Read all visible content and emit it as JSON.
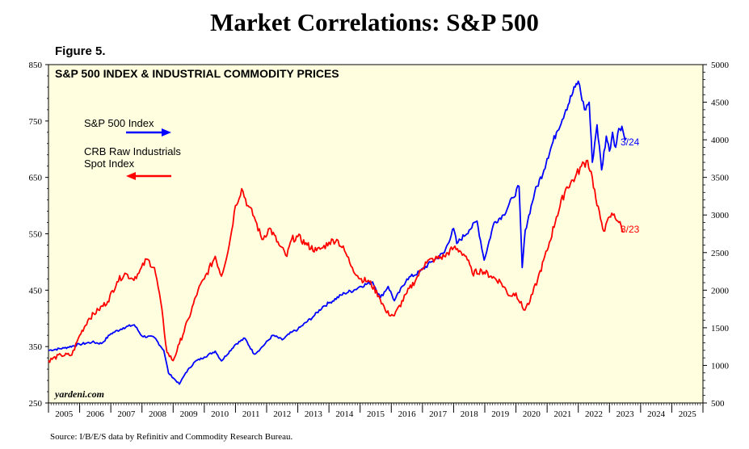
{
  "page": {
    "title": "Market Correlations: S&P 500",
    "figure_label": "Figure 5.",
    "source": "Source: I/B/E/S data by Refinitiv and Commodity Research Bureau.",
    "watermark": "yardeni.com"
  },
  "chart_data": {
    "type": "line",
    "title": "S&P 500 INDEX & INDUSTRIAL COMMODITY PRICES",
    "background": "#ffffe0",
    "x_range": [
      2005.0,
      2026.0
    ],
    "x_ticks": [
      "2005",
      "2006",
      "2007",
      "2008",
      "2009",
      "2010",
      "2011",
      "2012",
      "2013",
      "2014",
      "2015",
      "2016",
      "2017",
      "2018",
      "2019",
      "2020",
      "2021",
      "2022",
      "2023",
      "2024",
      "2025"
    ],
    "left_axis": {
      "range": [
        250,
        850
      ],
      "ticks": [
        "250",
        "350",
        "450",
        "550",
        "650",
        "750",
        "850"
      ],
      "series": "CRB Raw Industrials Spot Index"
    },
    "right_axis": {
      "range": [
        500,
        5000
      ],
      "ticks": [
        "500",
        "1000",
        "1500",
        "2000",
        "2500",
        "3000",
        "3500",
        "4000",
        "4500",
        "5000"
      ],
      "series": "S&P 500 Index"
    },
    "grid": false,
    "legend": {
      "placement": "top-left"
    },
    "series": [
      {
        "name": "S&P 500 Index",
        "axis": "right",
        "color": "#0000ff",
        "end_label": "3/24",
        "points": [
          [
            2005.0,
            1200
          ],
          [
            2005.5,
            1230
          ],
          [
            2006.0,
            1280
          ],
          [
            2006.4,
            1310
          ],
          [
            2006.7,
            1290
          ],
          [
            2007.0,
            1420
          ],
          [
            2007.4,
            1500
          ],
          [
            2007.75,
            1540
          ],
          [
            2008.0,
            1390
          ],
          [
            2008.4,
            1370
          ],
          [
            2008.7,
            1200
          ],
          [
            2008.85,
            900
          ],
          [
            2009.2,
            750
          ],
          [
            2009.4,
            900
          ],
          [
            2009.7,
            1050
          ],
          [
            2010.0,
            1110
          ],
          [
            2010.35,
            1190
          ],
          [
            2010.55,
            1060
          ],
          [
            2011.0,
            1280
          ],
          [
            2011.3,
            1360
          ],
          [
            2011.6,
            1150
          ],
          [
            2011.8,
            1220
          ],
          [
            2012.2,
            1400
          ],
          [
            2012.5,
            1340
          ],
          [
            2012.8,
            1440
          ],
          [
            2013.0,
            1480
          ],
          [
            2013.5,
            1650
          ],
          [
            2013.8,
            1780
          ],
          [
            2014.0,
            1830
          ],
          [
            2014.5,
            1960
          ],
          [
            2014.8,
            2000
          ],
          [
            2015.0,
            2050
          ],
          [
            2015.4,
            2110
          ],
          [
            2015.65,
            1900
          ],
          [
            2015.9,
            2050
          ],
          [
            2016.1,
            1860
          ],
          [
            2016.5,
            2150
          ],
          [
            2016.9,
            2240
          ],
          [
            2017.3,
            2380
          ],
          [
            2017.7,
            2500
          ],
          [
            2018.0,
            2820
          ],
          [
            2018.1,
            2620
          ],
          [
            2018.5,
            2800
          ],
          [
            2018.75,
            2920
          ],
          [
            2018.98,
            2400
          ],
          [
            2019.3,
            2900
          ],
          [
            2019.6,
            3000
          ],
          [
            2019.9,
            3230
          ],
          [
            2020.1,
            3380
          ],
          [
            2020.2,
            2300
          ],
          [
            2020.3,
            2800
          ],
          [
            2020.6,
            3300
          ],
          [
            2020.9,
            3600
          ],
          [
            2021.0,
            3750
          ],
          [
            2021.3,
            4100
          ],
          [
            2021.6,
            4400
          ],
          [
            2021.9,
            4700
          ],
          [
            2022.0,
            4780
          ],
          [
            2022.2,
            4400
          ],
          [
            2022.35,
            4500
          ],
          [
            2022.45,
            3700
          ],
          [
            2022.6,
            4200
          ],
          [
            2022.75,
            3600
          ],
          [
            2022.9,
            4050
          ],
          [
            2023.0,
            3850
          ],
          [
            2023.1,
            4100
          ],
          [
            2023.2,
            3900
          ],
          [
            2023.3,
            4150
          ],
          [
            2023.4,
            4180
          ],
          [
            2023.5,
            4000
          ],
          [
            2023.55,
            4020
          ]
        ]
      },
      {
        "name": "CRB Raw Industrials Spot Index",
        "axis": "left",
        "color": "#ff0000",
        "end_label": "3/23",
        "points": [
          [
            2005.0,
            325
          ],
          [
            2005.4,
            335
          ],
          [
            2005.75,
            335
          ],
          [
            2006.0,
            370
          ],
          [
            2006.3,
            400
          ],
          [
            2006.6,
            415
          ],
          [
            2006.9,
            430
          ],
          [
            2007.2,
            465
          ],
          [
            2007.45,
            480
          ],
          [
            2007.7,
            470
          ],
          [
            2007.9,
            480
          ],
          [
            2008.15,
            505
          ],
          [
            2008.4,
            490
          ],
          [
            2008.6,
            430
          ],
          [
            2008.8,
            340
          ],
          [
            2009.0,
            325
          ],
          [
            2009.2,
            355
          ],
          [
            2009.5,
            400
          ],
          [
            2009.8,
            450
          ],
          [
            2010.0,
            470
          ],
          [
            2010.35,
            510
          ],
          [
            2010.55,
            475
          ],
          [
            2010.8,
            530
          ],
          [
            2011.0,
            600
          ],
          [
            2011.2,
            630
          ],
          [
            2011.4,
            600
          ],
          [
            2011.6,
            580
          ],
          [
            2011.85,
            540
          ],
          [
            2012.1,
            560
          ],
          [
            2012.4,
            530
          ],
          [
            2012.65,
            510
          ],
          [
            2012.8,
            540
          ],
          [
            2013.0,
            545
          ],
          [
            2013.3,
            530
          ],
          [
            2013.6,
            520
          ],
          [
            2013.8,
            525
          ],
          [
            2014.0,
            535
          ],
          [
            2014.25,
            540
          ],
          [
            2014.5,
            520
          ],
          [
            2014.75,
            490
          ],
          [
            2015.0,
            470
          ],
          [
            2015.3,
            465
          ],
          [
            2015.6,
            440
          ],
          [
            2015.85,
            410
          ],
          [
            2016.1,
            405
          ],
          [
            2016.5,
            445
          ],
          [
            2016.8,
            470
          ],
          [
            2017.1,
            500
          ],
          [
            2017.4,
            505
          ],
          [
            2017.7,
            510
          ],
          [
            2018.0,
            525
          ],
          [
            2018.2,
            520
          ],
          [
            2018.4,
            510
          ],
          [
            2018.6,
            480
          ],
          [
            2018.9,
            485
          ],
          [
            2019.2,
            475
          ],
          [
            2019.5,
            465
          ],
          [
            2019.8,
            440
          ],
          [
            2020.0,
            445
          ],
          [
            2020.25,
            415
          ],
          [
            2020.45,
            430
          ],
          [
            2020.7,
            470
          ],
          [
            2021.0,
            520
          ],
          [
            2021.3,
            580
          ],
          [
            2021.6,
            630
          ],
          [
            2021.9,
            650
          ],
          [
            2022.1,
            670
          ],
          [
            2022.3,
            680
          ],
          [
            2022.45,
            650
          ],
          [
            2022.6,
            600
          ],
          [
            2022.75,
            570
          ],
          [
            2022.85,
            555
          ],
          [
            2023.0,
            580
          ],
          [
            2023.15,
            585
          ],
          [
            2023.3,
            570
          ],
          [
            2023.45,
            555
          ]
        ]
      }
    ],
    "annotations": {
      "legend_sp_line1": "S&P 500 Index",
      "legend_crb_line1": "CRB Raw Industrials",
      "legend_crb_line2": "Spot Index"
    }
  }
}
